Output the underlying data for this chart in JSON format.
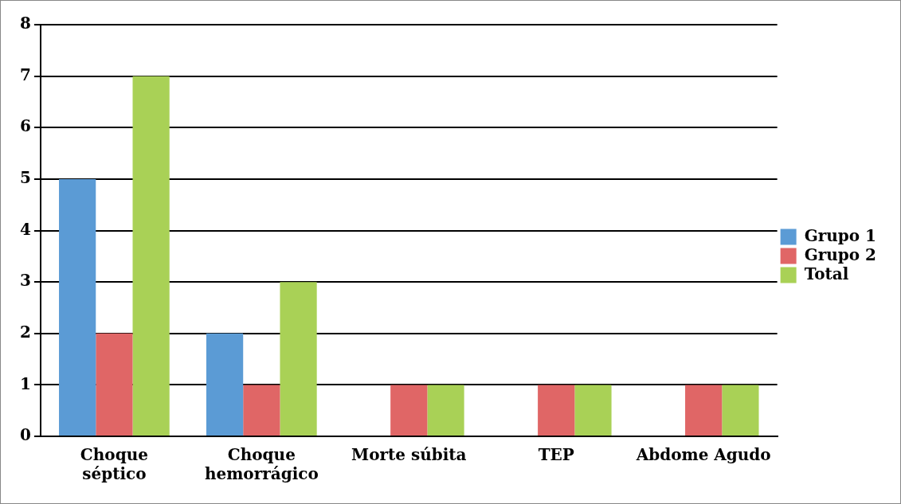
{
  "chart_data": {
    "type": "bar",
    "categories": [
      "Choque séptico",
      "Choque hemorrágico",
      "Morte súbita",
      "TEP",
      "Abdome Agudo"
    ],
    "series": [
      {
        "name": "Grupo 1",
        "color": "#5b9bd5",
        "values": [
          5,
          2,
          0,
          0,
          0
        ]
      },
      {
        "name": "Grupo 2",
        "color": "#e06666",
        "values": [
          2,
          1,
          1,
          1,
          1
        ]
      },
      {
        "name": "Total",
        "color": "#a9d156",
        "values": [
          7,
          3,
          1,
          1,
          1
        ]
      }
    ],
    "ylim": [
      0,
      8
    ],
    "yticks": [
      0,
      1,
      2,
      3,
      4,
      5,
      6,
      7,
      8
    ],
    "grid": "y",
    "legend": "right"
  }
}
